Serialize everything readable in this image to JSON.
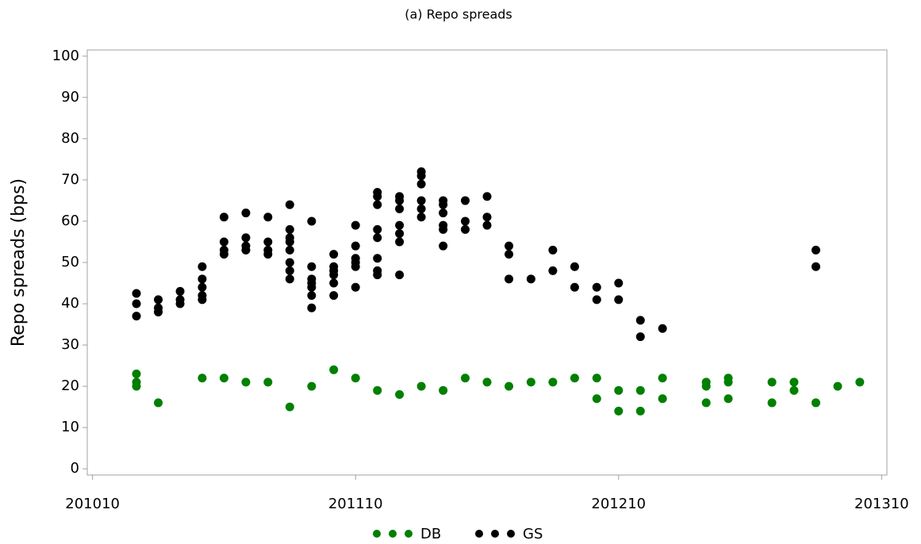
{
  "chart_data": {
    "type": "scatter",
    "title": "(a) Repo spreads",
    "y_label": "Repo spreads (bps)",
    "xlim": [
      2010.73,
      2013.77
    ],
    "xticks": [
      {
        "value": 2010.75,
        "label": "201010"
      },
      {
        "value": 2011.75,
        "label": "201110"
      },
      {
        "value": 2012.75,
        "label": "201210"
      },
      {
        "value": 2013.75,
        "label": "201310"
      }
    ],
    "ylim": [
      -1.5,
      101.5
    ],
    "yticks": [
      0,
      10,
      20,
      30,
      40,
      50,
      60,
      70,
      80,
      90,
      100
    ],
    "legend": "bottom",
    "series": [
      {
        "name": "DB",
        "color": "#008000",
        "x": [
          2010.917,
          2010.917,
          2010.917,
          2011.0,
          2011.167,
          2011.25,
          2011.333,
          2011.417,
          2011.5,
          2011.583,
          2011.667,
          2011.75,
          2011.833,
          2011.917,
          2012.0,
          2012.083,
          2012.167,
          2012.25,
          2012.333,
          2012.417,
          2012.5,
          2012.583,
          2012.667,
          2012.667,
          2012.75,
          2012.75,
          2012.833,
          2012.833,
          2012.917,
          2012.917,
          2013.083,
          2013.083,
          2013.083,
          2013.167,
          2013.167,
          2013.167,
          2013.333,
          2013.333,
          2013.417,
          2013.417,
          2013.5,
          2013.583,
          2013.667
        ],
        "values": [
          23,
          21,
          20,
          16,
          22,
          22,
          21,
          21,
          15,
          20,
          24,
          22,
          19,
          18,
          20,
          19,
          22,
          21,
          20,
          21,
          21,
          22,
          22,
          17,
          19,
          14,
          19,
          14,
          22,
          17,
          21,
          20,
          16,
          22,
          21,
          17,
          21,
          16,
          21,
          19,
          16,
          20,
          21
        ]
      },
      {
        "name": "GS",
        "color": "#000000",
        "x": [
          2010.917,
          2010.917,
          2010.917,
          2011.0,
          2011.0,
          2011.0,
          2011.083,
          2011.083,
          2011.083,
          2011.167,
          2011.167,
          2011.167,
          2011.167,
          2011.167,
          2011.25,
          2011.25,
          2011.25,
          2011.25,
          2011.333,
          2011.333,
          2011.333,
          2011.333,
          2011.417,
          2011.417,
          2011.417,
          2011.417,
          2011.5,
          2011.5,
          2011.5,
          2011.5,
          2011.5,
          2011.5,
          2011.5,
          2011.5,
          2011.583,
          2011.583,
          2011.583,
          2011.583,
          2011.583,
          2011.583,
          2011.583,
          2011.667,
          2011.667,
          2011.667,
          2011.667,
          2011.667,
          2011.667,
          2011.75,
          2011.75,
          2011.75,
          2011.75,
          2011.75,
          2011.75,
          2011.833,
          2011.833,
          2011.833,
          2011.833,
          2011.833,
          2011.833,
          2011.833,
          2011.833,
          2011.917,
          2011.917,
          2011.917,
          2011.917,
          2011.917,
          2011.917,
          2011.917,
          2012.0,
          2012.0,
          2012.0,
          2012.0,
          2012.0,
          2012.0,
          2012.083,
          2012.083,
          2012.083,
          2012.083,
          2012.083,
          2012.083,
          2012.167,
          2012.167,
          2012.167,
          2012.25,
          2012.25,
          2012.25,
          2012.333,
          2012.333,
          2012.333,
          2012.417,
          2012.5,
          2012.5,
          2012.583,
          2012.583,
          2012.667,
          2012.667,
          2012.75,
          2012.75,
          2012.833,
          2012.833,
          2012.917,
          2013.5,
          2013.5
        ],
        "values": [
          42.5,
          40,
          37,
          41,
          39,
          38,
          43,
          41,
          40,
          49,
          46,
          44,
          42,
          41,
          61,
          55,
          53,
          52,
          62,
          56,
          54,
          53,
          61,
          55,
          53,
          52,
          64,
          58,
          56,
          55,
          53,
          50,
          48,
          46,
          60,
          49,
          46,
          45,
          44,
          42,
          39,
          52,
          49,
          48,
          47,
          45,
          42,
          59,
          54,
          51,
          50,
          49,
          44,
          67,
          66,
          64,
          58,
          56,
          51,
          48,
          47,
          66,
          65,
          63,
          59,
          57,
          55,
          47,
          72,
          71,
          69,
          65,
          63,
          61,
          65,
          64,
          62,
          59,
          58,
          54,
          65,
          60,
          58,
          66,
          61,
          59,
          54,
          52,
          46,
          46,
          53,
          48,
          49,
          44,
          44,
          41,
          45,
          41,
          36,
          32,
          34,
          53,
          49
        ]
      }
    ]
  }
}
